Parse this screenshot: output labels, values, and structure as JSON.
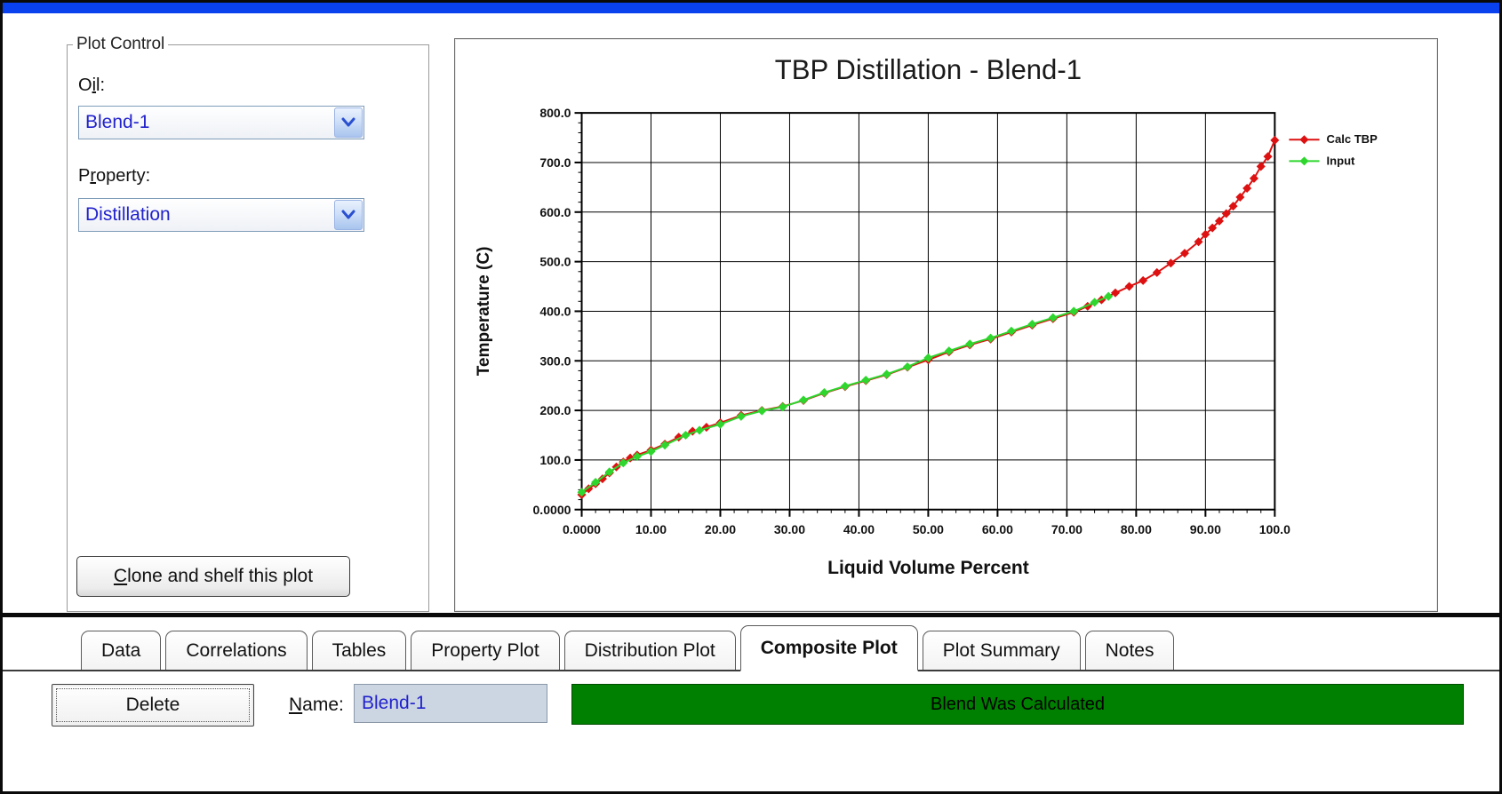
{
  "window": {
    "titlebar_color": "#0a41ee"
  },
  "plot_control": {
    "legend": "Plot Control",
    "oil_label": {
      "pre": "O",
      "key": "i",
      "post": "l:"
    },
    "oil_value": "Blend-1",
    "property_label": {
      "pre": "P",
      "key": "r",
      "post": "operty:"
    },
    "property_value": "Distillation",
    "clone_button": {
      "pre": "",
      "key": "C",
      "post": "lone and shelf this plot"
    }
  },
  "chart_data": {
    "type": "line",
    "title": "TBP Distillation - Blend-1",
    "xlabel": "Liquid Volume Percent",
    "ylabel": "Temperature (C)",
    "xlim": [
      0,
      100
    ],
    "ylim": [
      0,
      800
    ],
    "x_major_step": 10,
    "y_major_step": 100,
    "x_minor_step": 2,
    "y_minor_step": 20,
    "grid": true,
    "legend_position": "right",
    "x_tick_labels": [
      "0.0000",
      "10.00",
      "20.00",
      "30.00",
      "40.00",
      "50.00",
      "60.00",
      "70.00",
      "80.00",
      "90.00",
      "100.0"
    ],
    "y_tick_labels": [
      "0.0000",
      "100.0",
      "200.0",
      "300.0",
      "400.0",
      "500.0",
      "600.0",
      "700.0",
      "800.0"
    ],
    "series": [
      {
        "name": "Calc TBP",
        "color": "#dd1111",
        "points": [
          [
            0,
            30
          ],
          [
            1,
            42
          ],
          [
            2,
            52
          ],
          [
            3,
            62
          ],
          [
            4,
            74
          ],
          [
            5,
            86
          ],
          [
            6,
            96
          ],
          [
            7,
            104
          ],
          [
            8,
            110
          ],
          [
            10,
            120
          ],
          [
            12,
            132
          ],
          [
            14,
            146
          ],
          [
            16,
            158
          ],
          [
            18,
            166
          ],
          [
            20,
            175
          ],
          [
            23,
            190
          ],
          [
            26,
            200
          ],
          [
            29,
            208
          ],
          [
            32,
            220
          ],
          [
            35,
            235
          ],
          [
            38,
            248
          ],
          [
            41,
            260
          ],
          [
            44,
            272
          ],
          [
            47,
            287
          ],
          [
            50,
            302
          ],
          [
            53,
            318
          ],
          [
            56,
            332
          ],
          [
            59,
            344
          ],
          [
            62,
            358
          ],
          [
            65,
            372
          ],
          [
            68,
            385
          ],
          [
            71,
            398
          ],
          [
            73,
            410
          ],
          [
            75,
            423
          ],
          [
            77,
            437
          ],
          [
            79,
            450
          ],
          [
            81,
            462
          ],
          [
            83,
            478
          ],
          [
            85,
            497
          ],
          [
            87,
            517
          ],
          [
            89,
            540
          ],
          [
            90,
            555
          ],
          [
            91,
            568
          ],
          [
            92,
            582
          ],
          [
            93,
            597
          ],
          [
            94,
            612
          ],
          [
            95,
            630
          ],
          [
            96,
            648
          ],
          [
            97,
            668
          ],
          [
            98,
            692
          ],
          [
            99,
            712
          ],
          [
            100,
            745
          ]
        ]
      },
      {
        "name": "Input",
        "color": "#2ed62e",
        "points": [
          [
            0,
            35
          ],
          [
            2,
            55
          ],
          [
            4,
            76
          ],
          [
            6,
            94
          ],
          [
            8,
            107
          ],
          [
            10,
            117
          ],
          [
            12,
            130
          ],
          [
            15,
            150
          ],
          [
            17,
            160
          ],
          [
            20,
            172
          ],
          [
            23,
            188
          ],
          [
            26,
            199
          ],
          [
            29,
            207
          ],
          [
            32,
            221
          ],
          [
            35,
            236
          ],
          [
            38,
            249
          ],
          [
            41,
            261
          ],
          [
            44,
            273
          ],
          [
            47,
            288
          ],
          [
            50,
            306
          ],
          [
            53,
            320
          ],
          [
            56,
            334
          ],
          [
            59,
            346
          ],
          [
            62,
            360
          ],
          [
            65,
            374
          ],
          [
            68,
            387
          ],
          [
            71,
            400
          ],
          [
            74,
            418
          ],
          [
            76,
            430
          ]
        ]
      }
    ]
  },
  "tabs": [
    {
      "label": "Data",
      "active": false
    },
    {
      "label": "Correlations",
      "active": false
    },
    {
      "label": "Tables",
      "active": false
    },
    {
      "label": "Property Plot",
      "active": false
    },
    {
      "label": "Distribution Plot",
      "active": false
    },
    {
      "label": "Composite Plot",
      "active": true
    },
    {
      "label": "Plot Summary",
      "active": false
    },
    {
      "label": "Notes",
      "active": false
    }
  ],
  "bottom": {
    "delete_button": "Delete",
    "name_label": {
      "pre": "",
      "key": "N",
      "post": "ame:"
    },
    "name_value": "Blend-1",
    "status_text": "Blend Was Calculated",
    "status_color": "#008000"
  }
}
